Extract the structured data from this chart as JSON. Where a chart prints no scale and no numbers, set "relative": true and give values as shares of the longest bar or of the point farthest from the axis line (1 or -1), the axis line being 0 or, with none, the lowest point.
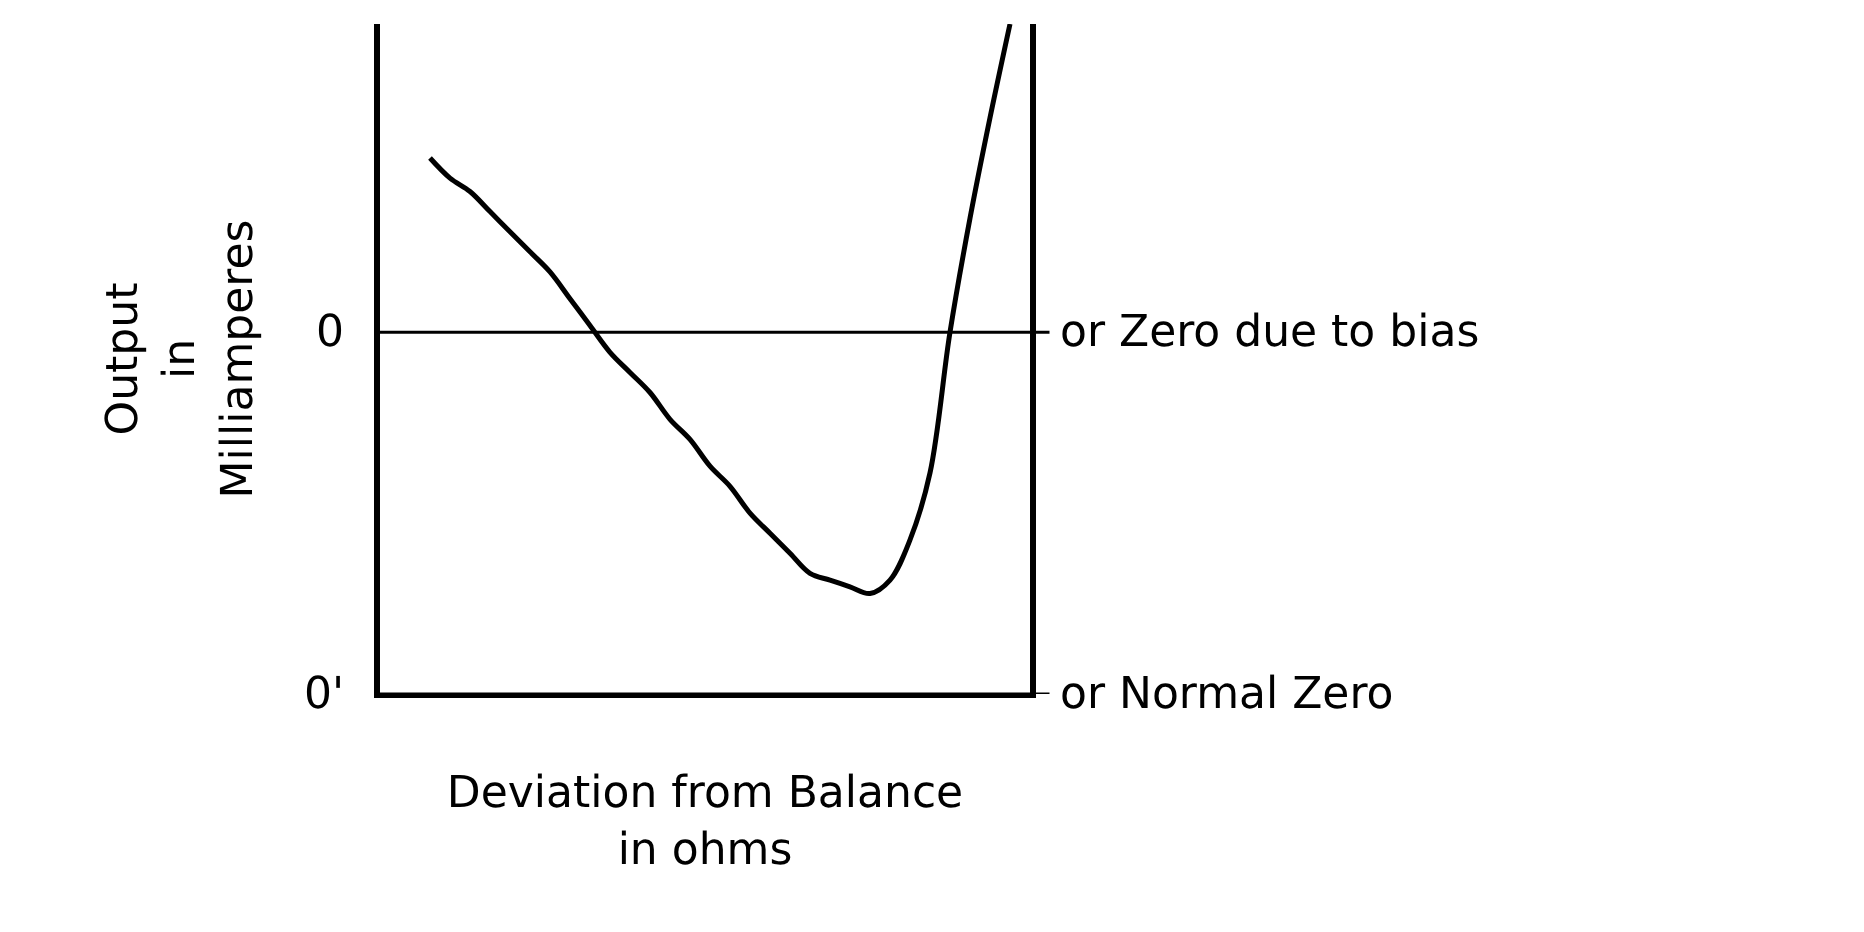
{
  "chart_data": {
    "type": "line",
    "relative": true,
    "categories": [
      null,
      null,
      null,
      null,
      null,
      null,
      null,
      null,
      null,
      null,
      null,
      null,
      null,
      null,
      null,
      null,
      null,
      null,
      null,
      null,
      null,
      null,
      null,
      null,
      null,
      null,
      null,
      null,
      null,
      null
    ],
    "values": [
      0.8,
      0.77,
      0.75,
      0.72,
      0.69,
      0.66,
      0.63,
      0.59,
      0.55,
      0.51,
      0.48,
      0.45,
      0.41,
      0.38,
      0.34,
      0.31,
      0.27,
      0.24,
      0.21,
      0.18,
      0.17,
      0.16,
      0.15,
      0.17,
      0.23,
      0.33,
      0.54,
      0.71,
      0.86,
      1
    ],
    "color": "#000000",
    "ylabel": "Output\nin\nMilliamperes",
    "xlabel": "Deviation from Balance\nin ohms",
    "ref_lines": [
      {
        "axis": "y",
        "value": 0.54,
        "label": "or Zero due to bias"
      },
      {
        "axis": "y",
        "value": 0,
        "label": "or Normal Zero"
      }
    ],
    "annotations": [
      "0",
      "0'"
    ],
    "legend": false,
    "tick_labels": false,
    "marker": "none",
    "line_style": "solid"
  }
}
